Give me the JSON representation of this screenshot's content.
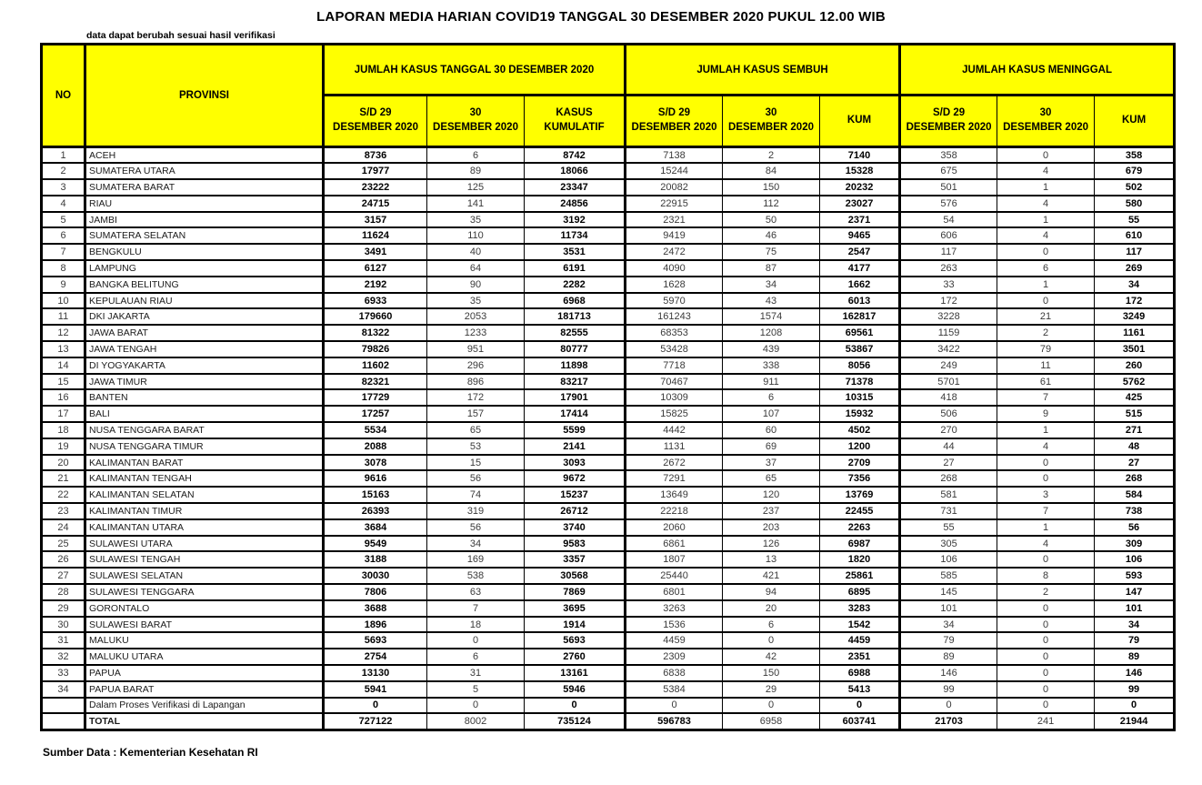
{
  "title": "LAPORAN MEDIA HARIAN COVID19 TANGGAL 30 DESEMBER 2020 PUKUL 12.00 WIB",
  "note": "data dapat berubah sesuai hasil verifikasi",
  "source": "Sumber Data : Kementerian Kesehatan RI",
  "colors": {
    "header_bg": "#ffff00",
    "border": "#000000",
    "text": "#000000"
  },
  "table": {
    "header": {
      "no": "NO",
      "provinsi": "PROVINSI",
      "groups": [
        {
          "label": "JUMLAH KASUS TANGGAL 30 DESEMBER 2020",
          "sub": [
            "S/D 29 DESEMBER 2020",
            "30 DESEMBER 2020",
            "KASUS KUMULATIF"
          ]
        },
        {
          "label": "JUMLAH KASUS SEMBUH",
          "sub": [
            "S/D 29 DESEMBER 2020",
            "30 DESEMBER 2020",
            "KUM"
          ]
        },
        {
          "label": "JUMLAH KASUS MENINGGAL",
          "sub": [
            "S/D 29 DESEMBER 2020",
            "30 DESEMBER 2020",
            "KUM"
          ]
        }
      ]
    },
    "bold_value_columns_body": [
      0,
      2,
      5,
      8
    ],
    "bold_value_columns_total": [
      0,
      2,
      3,
      5,
      6,
      8
    ],
    "rows": [
      {
        "no": "1",
        "provinsi": "ACEH",
        "values": [
          "8736",
          "6",
          "8742",
          "7138",
          "2",
          "7140",
          "358",
          "0",
          "358"
        ]
      },
      {
        "no": "2",
        "provinsi": "SUMATERA UTARA",
        "values": [
          "17977",
          "89",
          "18066",
          "15244",
          "84",
          "15328",
          "675",
          "4",
          "679"
        ]
      },
      {
        "no": "3",
        "provinsi": "SUMATERA BARAT",
        "values": [
          "23222",
          "125",
          "23347",
          "20082",
          "150",
          "20232",
          "501",
          "1",
          "502"
        ]
      },
      {
        "no": "4",
        "provinsi": "RIAU",
        "values": [
          "24715",
          "141",
          "24856",
          "22915",
          "112",
          "23027",
          "576",
          "4",
          "580"
        ]
      },
      {
        "no": "5",
        "provinsi": "JAMBI",
        "values": [
          "3157",
          "35",
          "3192",
          "2321",
          "50",
          "2371",
          "54",
          "1",
          "55"
        ]
      },
      {
        "no": "6",
        "provinsi": "SUMATERA SELATAN",
        "values": [
          "11624",
          "110",
          "11734",
          "9419",
          "46",
          "9465",
          "606",
          "4",
          "610"
        ]
      },
      {
        "no": "7",
        "provinsi": "BENGKULU",
        "values": [
          "3491",
          "40",
          "3531",
          "2472",
          "75",
          "2547",
          "117",
          "0",
          "117"
        ]
      },
      {
        "no": "8",
        "provinsi": "LAMPUNG",
        "values": [
          "6127",
          "64",
          "6191",
          "4090",
          "87",
          "4177",
          "263",
          "6",
          "269"
        ]
      },
      {
        "no": "9",
        "provinsi": "BANGKA BELITUNG",
        "values": [
          "2192",
          "90",
          "2282",
          "1628",
          "34",
          "1662",
          "33",
          "1",
          "34"
        ]
      },
      {
        "no": "10",
        "provinsi": "KEPULAUAN RIAU",
        "values": [
          "6933",
          "35",
          "6968",
          "5970",
          "43",
          "6013",
          "172",
          "0",
          "172"
        ]
      },
      {
        "no": "11",
        "provinsi": "DKI JAKARTA",
        "values": [
          "179660",
          "2053",
          "181713",
          "161243",
          "1574",
          "162817",
          "3228",
          "21",
          "3249"
        ]
      },
      {
        "no": "12",
        "provinsi": "JAWA BARAT",
        "values": [
          "81322",
          "1233",
          "82555",
          "68353",
          "1208",
          "69561",
          "1159",
          "2",
          "1161"
        ]
      },
      {
        "no": "13",
        "provinsi": "JAWA TENGAH",
        "values": [
          "79826",
          "951",
          "80777",
          "53428",
          "439",
          "53867",
          "3422",
          "79",
          "3501"
        ]
      },
      {
        "no": "14",
        "provinsi": "DI YOGYAKARTA",
        "values": [
          "11602",
          "296",
          "11898",
          "7718",
          "338",
          "8056",
          "249",
          "11",
          "260"
        ]
      },
      {
        "no": "15",
        "provinsi": "JAWA TIMUR",
        "values": [
          "82321",
          "896",
          "83217",
          "70467",
          "911",
          "71378",
          "5701",
          "61",
          "5762"
        ]
      },
      {
        "no": "16",
        "provinsi": "BANTEN",
        "values": [
          "17729",
          "172",
          "17901",
          "10309",
          "6",
          "10315",
          "418",
          "7",
          "425"
        ]
      },
      {
        "no": "17",
        "provinsi": "BALI",
        "values": [
          "17257",
          "157",
          "17414",
          "15825",
          "107",
          "15932",
          "506",
          "9",
          "515"
        ]
      },
      {
        "no": "18",
        "provinsi": "NUSA TENGGARA BARAT",
        "values": [
          "5534",
          "65",
          "5599",
          "4442",
          "60",
          "4502",
          "270",
          "1",
          "271"
        ]
      },
      {
        "no": "19",
        "provinsi": "NUSA TENGGARA TIMUR",
        "values": [
          "2088",
          "53",
          "2141",
          "1131",
          "69",
          "1200",
          "44",
          "4",
          "48"
        ]
      },
      {
        "no": "20",
        "provinsi": "KALIMANTAN BARAT",
        "values": [
          "3078",
          "15",
          "3093",
          "2672",
          "37",
          "2709",
          "27",
          "0",
          "27"
        ]
      },
      {
        "no": "21",
        "provinsi": "KALIMANTAN TENGAH",
        "values": [
          "9616",
          "56",
          "9672",
          "7291",
          "65",
          "7356",
          "268",
          "0",
          "268"
        ]
      },
      {
        "no": "22",
        "provinsi": "KALIMANTAN SELATAN",
        "values": [
          "15163",
          "74",
          "15237",
          "13649",
          "120",
          "13769",
          "581",
          "3",
          "584"
        ]
      },
      {
        "no": "23",
        "provinsi": "KALIMANTAN TIMUR",
        "values": [
          "26393",
          "319",
          "26712",
          "22218",
          "237",
          "22455",
          "731",
          "7",
          "738"
        ]
      },
      {
        "no": "24",
        "provinsi": "KALIMANTAN UTARA",
        "values": [
          "3684",
          "56",
          "3740",
          "2060",
          "203",
          "2263",
          "55",
          "1",
          "56"
        ]
      },
      {
        "no": "25",
        "provinsi": "SULAWESI UTARA",
        "values": [
          "9549",
          "34",
          "9583",
          "6861",
          "126",
          "6987",
          "305",
          "4",
          "309"
        ]
      },
      {
        "no": "26",
        "provinsi": "SULAWESI TENGAH",
        "values": [
          "3188",
          "169",
          "3357",
          "1807",
          "13",
          "1820",
          "106",
          "0",
          "106"
        ]
      },
      {
        "no": "27",
        "provinsi": "SULAWESI SELATAN",
        "values": [
          "30030",
          "538",
          "30568",
          "25440",
          "421",
          "25861",
          "585",
          "8",
          "593"
        ]
      },
      {
        "no": "28",
        "provinsi": "SULAWESI TENGGARA",
        "values": [
          "7806",
          "63",
          "7869",
          "6801",
          "94",
          "6895",
          "145",
          "2",
          "147"
        ]
      },
      {
        "no": "29",
        "provinsi": "GORONTALO",
        "values": [
          "3688",
          "7",
          "3695",
          "3263",
          "20",
          "3283",
          "101",
          "0",
          "101"
        ]
      },
      {
        "no": "30",
        "provinsi": "SULAWESI BARAT",
        "values": [
          "1896",
          "18",
          "1914",
          "1536",
          "6",
          "1542",
          "34",
          "0",
          "34"
        ]
      },
      {
        "no": "31",
        "provinsi": "MALUKU",
        "values": [
          "5693",
          "0",
          "5693",
          "4459",
          "0",
          "4459",
          "79",
          "0",
          "79"
        ]
      },
      {
        "no": "32",
        "provinsi": "MALUKU UTARA",
        "values": [
          "2754",
          "6",
          "2760",
          "2309",
          "42",
          "2351",
          "89",
          "0",
          "89"
        ]
      },
      {
        "no": "33",
        "provinsi": "PAPUA",
        "values": [
          "13130",
          "31",
          "13161",
          "6838",
          "150",
          "6988",
          "146",
          "0",
          "146"
        ]
      },
      {
        "no": "34",
        "provinsi": "PAPUA BARAT",
        "values": [
          "5941",
          "5",
          "5946",
          "5384",
          "29",
          "5413",
          "99",
          "0",
          "99"
        ]
      },
      {
        "no": "",
        "provinsi": "Dalam Proses Verifikasi di Lapangan",
        "values": [
          "0",
          "0",
          "0",
          "0",
          "0",
          "0",
          "0",
          "0",
          "0"
        ]
      },
      {
        "no": "",
        "provinsi": "TOTAL",
        "is_total": true,
        "values": [
          "727122",
          "8002",
          "735124",
          "596783",
          "6958",
          "603741",
          "21703",
          "241",
          "21944"
        ]
      }
    ]
  }
}
